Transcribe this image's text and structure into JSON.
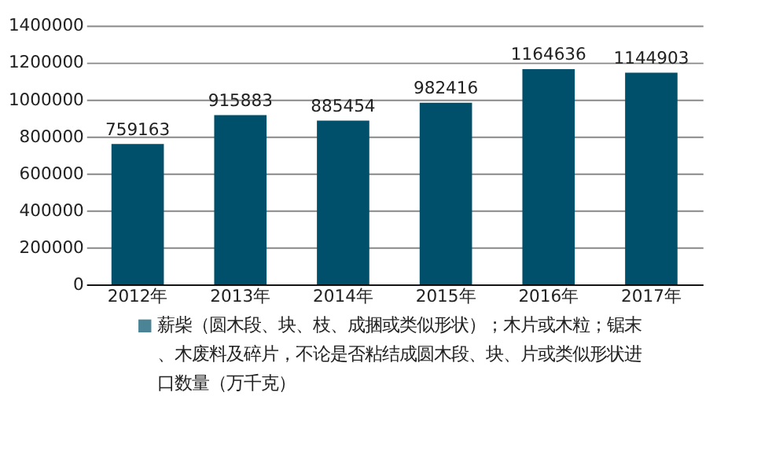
{
  "chart_data": {
    "type": "bar",
    "categories": [
      "2012年",
      "2013年",
      "2014年",
      "2015年",
      "2016年",
      "2017年"
    ],
    "series": [
      {
        "name": "薪柴（圆木段、块、枝、成捆或类似形状）；木片或木粒；锯末、木废料及碎片，不论是否粘结成圆木段、块、片或类似形状进口数量（万千克）",
        "color": "#00506b",
        "values": [
          759163,
          915883,
          885454,
          982416,
          1164636,
          1144903
        ]
      }
    ],
    "ylim": [
      0,
      1400000
    ],
    "yticks": [
      0,
      200000,
      400000,
      600000,
      800000,
      1000000,
      1200000,
      1400000
    ],
    "grid": "y",
    "data_labels": true,
    "legend": "bottom"
  }
}
